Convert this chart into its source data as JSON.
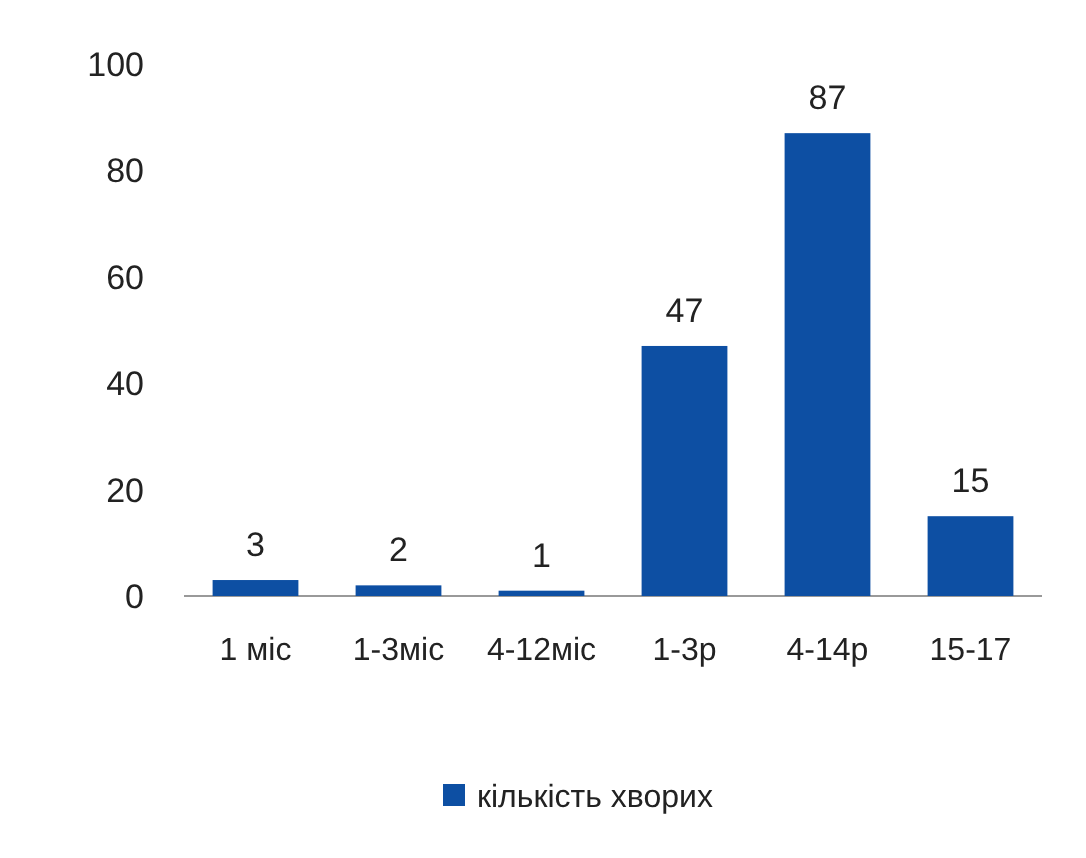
{
  "chart_data": {
    "type": "bar",
    "categories": [
      "1 міс",
      "1-3міс",
      "4-12міс",
      "1-3р",
      "4-14р",
      "15-17"
    ],
    "series": [
      {
        "name": "кількість хворих",
        "color": "#0d4fa3",
        "values": [
          3,
          2,
          1,
          47,
          87,
          15
        ]
      }
    ],
    "ylim": [
      0,
      100
    ],
    "yticks": [
      0,
      20,
      40,
      60,
      80,
      100
    ],
    "data_labels": true,
    "legend": "bottom",
    "grid": false
  }
}
